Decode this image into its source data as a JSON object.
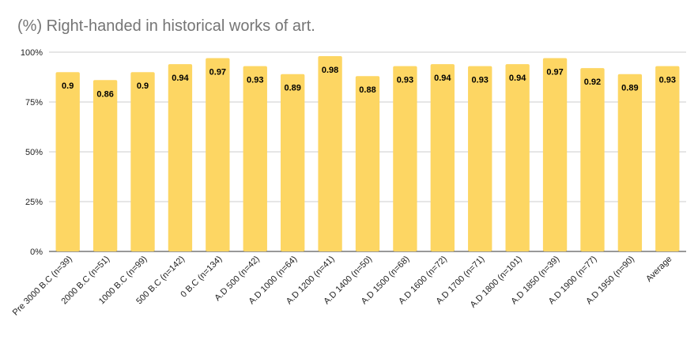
{
  "chart_data": {
    "type": "bar",
    "title": "(%) Right-handed in historical works of art.",
    "xlabel": "",
    "ylabel": "",
    "ylim": [
      0,
      1
    ],
    "yticks": [
      {
        "value": 0,
        "label": "0%"
      },
      {
        "value": 0.25,
        "label": "25%"
      },
      {
        "value": 0.5,
        "label": "50%"
      },
      {
        "value": 0.75,
        "label": "75%"
      },
      {
        "value": 1,
        "label": "100%"
      }
    ],
    "grid": true,
    "categories": [
      "Pre 3000 B.C (n=39)",
      "2000 B.C (n=51)",
      "1000 B.C (n=99)",
      "500 B.C (n=142)",
      "0 B.C (n=134)",
      "A.D 500 (n=42)",
      "A.D 1000 (n=64)",
      "A.D 1200 (n=41)",
      "A.D 1400 (n=50)",
      "A.D 1500 (n=68)",
      "A.D 1600 (n=72)",
      "A.D 1700 (n=71)",
      "A.D 1800 (n=101)",
      "A.D 1850 (n=39)",
      "A.D 1900 (n=77)",
      "A.D 1950 (n=90)",
      "Average"
    ],
    "values": [
      0.9,
      0.86,
      0.9,
      0.94,
      0.97,
      0.93,
      0.89,
      0.98,
      0.88,
      0.93,
      0.94,
      0.93,
      0.94,
      0.97,
      0.92,
      0.89,
      0.93
    ],
    "data_labels": [
      "0.9",
      "0.86",
      "0.9",
      "0.94",
      "0.97",
      "0.93",
      "0.89",
      "0.98",
      "0.88",
      "0.93",
      "0.94",
      "0.93",
      "0.94",
      "0.97",
      "0.92",
      "0.89",
      "0.93"
    ],
    "bar_color": "#FDD663",
    "gridline_color": "#CCCCCC",
    "label_color": "#000000",
    "axis_label_color": "#222222"
  }
}
